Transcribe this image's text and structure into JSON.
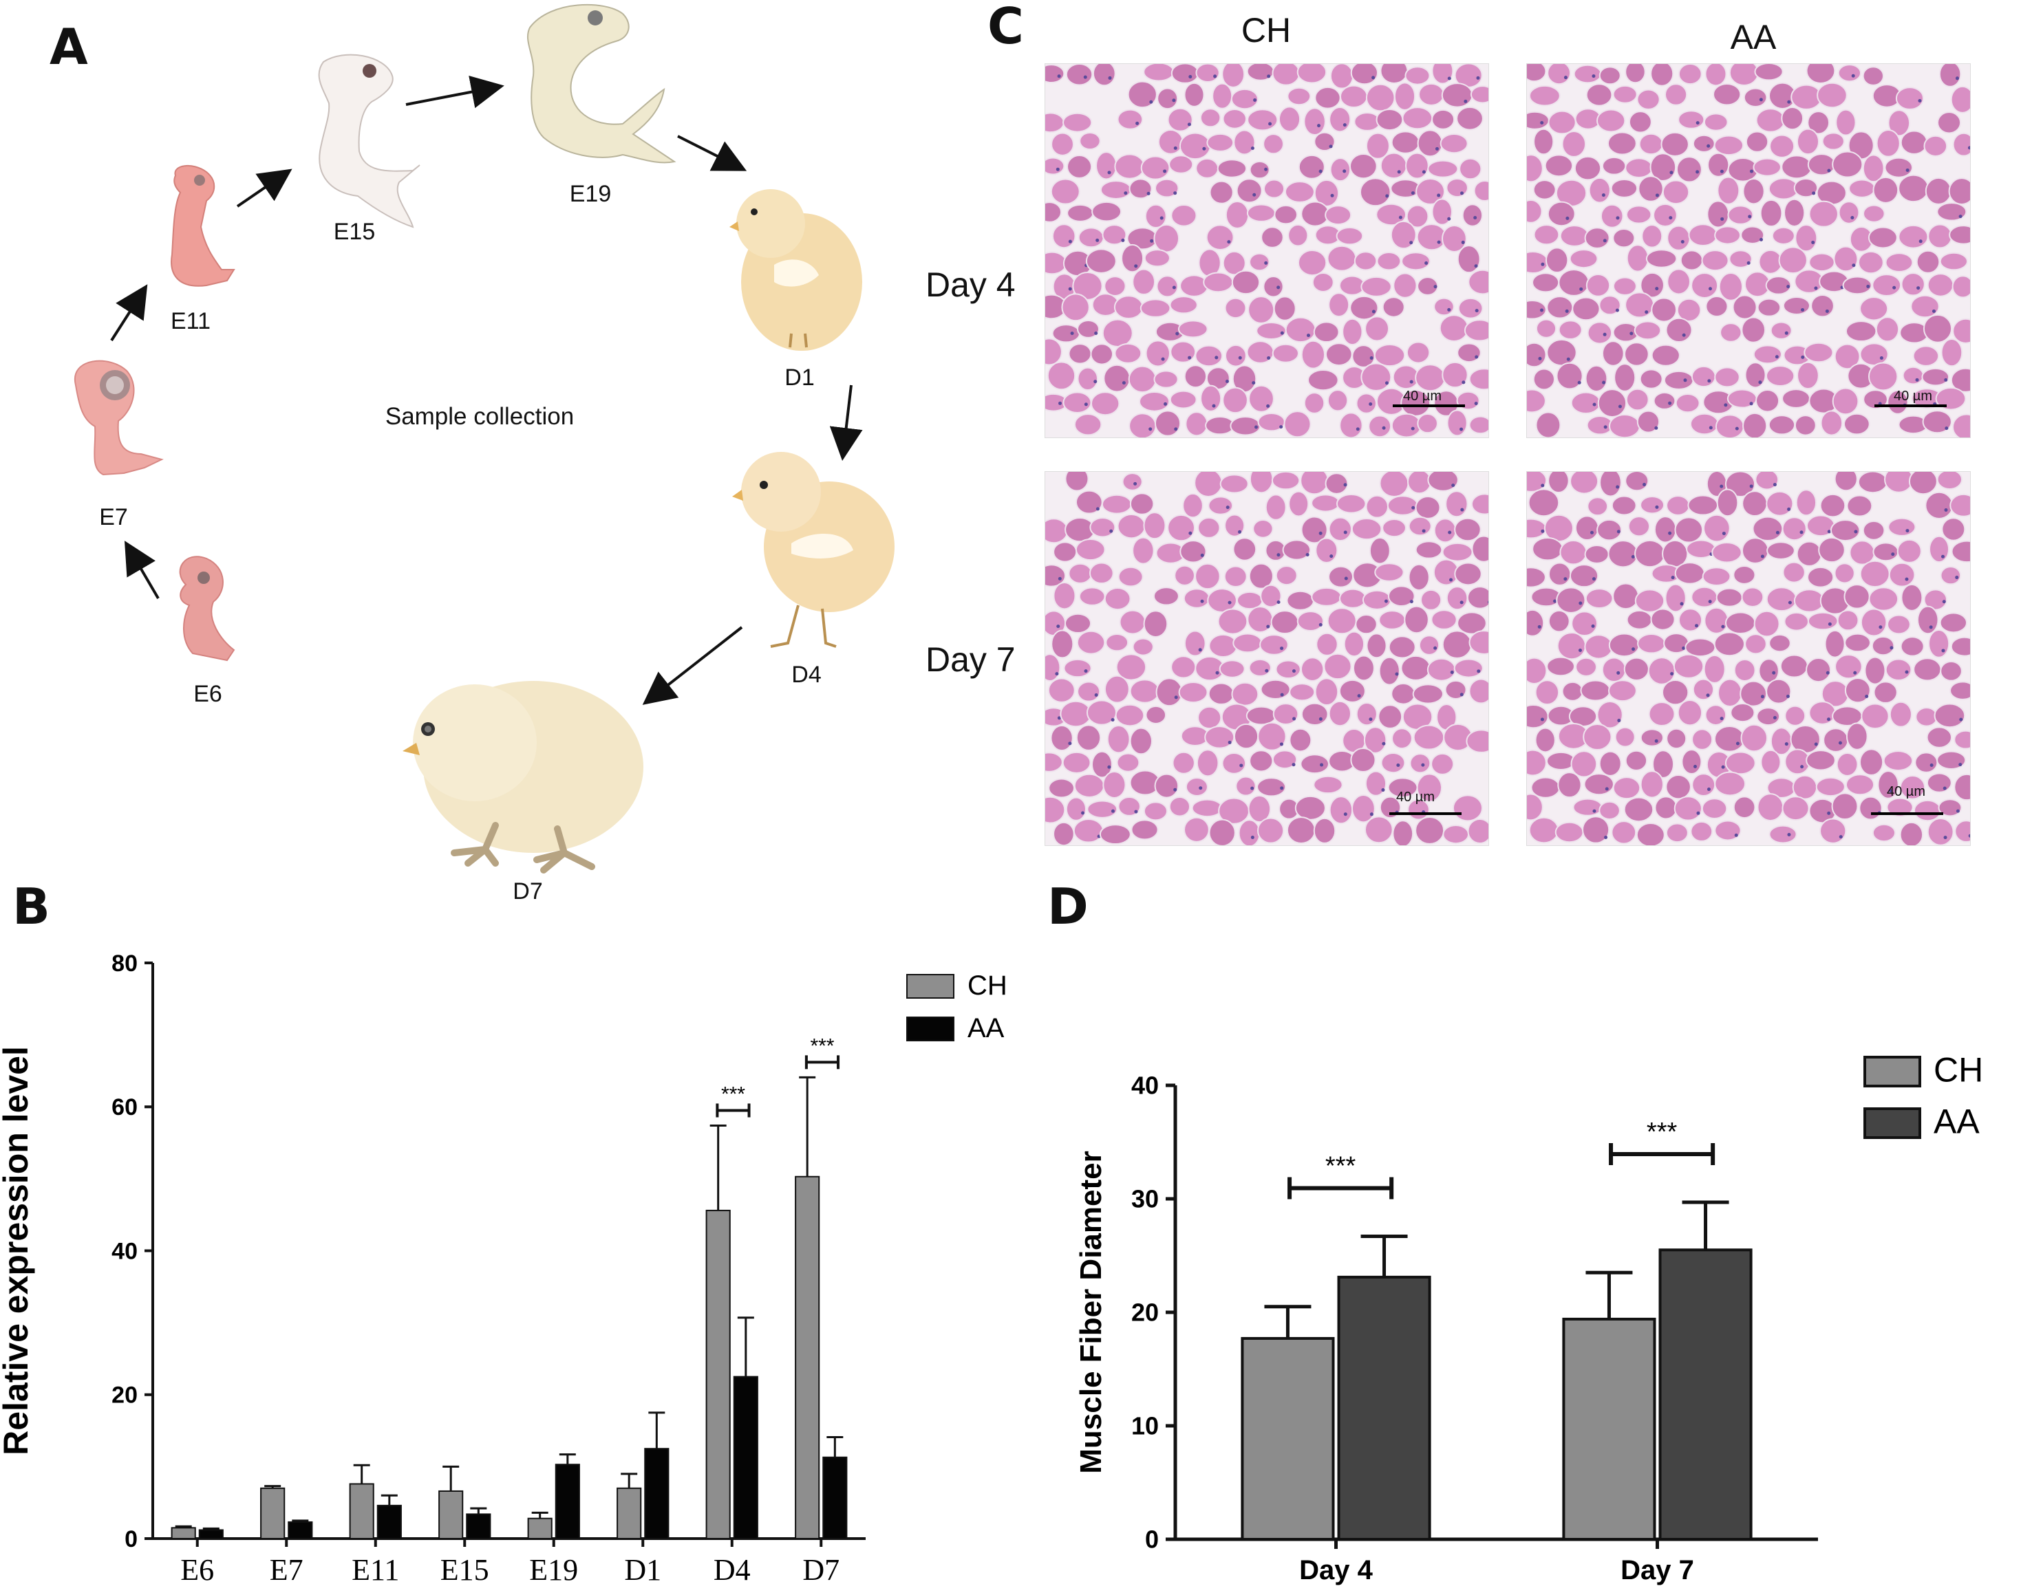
{
  "panels": {
    "a": "A",
    "b": "B",
    "c": "C",
    "d": "D"
  },
  "panel_a": {
    "center_label": "Sample collection",
    "stages": [
      "E6",
      "E7",
      "E11",
      "E15",
      "E19",
      "D1",
      "D4",
      "D7"
    ]
  },
  "panel_c": {
    "columns": [
      "CH",
      "AA"
    ],
    "rows": [
      "Day 4",
      "Day 7"
    ],
    "scale_bar": "40 µm",
    "colors": {
      "tissue": "#c97bb2",
      "fiber": "#d98fc4",
      "background": "#f4eef3",
      "nuclei": "#5a4a9a"
    }
  },
  "chart_data": [
    {
      "id": "B",
      "type": "bar",
      "ylabel": "Relative expression level",
      "xlabel": "",
      "ylim": [
        0,
        80
      ],
      "yticks": [
        "0",
        "20",
        "40",
        "60",
        "80"
      ],
      "categories": [
        "E6",
        "E7",
        "E11",
        "E15",
        "E19",
        "D1",
        "D4",
        "D7"
      ],
      "series": [
        {
          "name": "CH",
          "color": "#8e8e8e",
          "values": [
            1.5,
            7.0,
            7.6,
            6.6,
            2.8,
            7.0,
            45.6,
            50.3
          ],
          "errors": [
            0.2,
            0.3,
            2.6,
            3.4,
            0.8,
            2.0,
            11.8,
            13.8
          ]
        },
        {
          "name": "AA",
          "color": "#050505",
          "values": [
            1.2,
            2.3,
            4.6,
            3.4,
            10.3,
            12.5,
            22.5,
            11.3
          ],
          "errors": [
            0.2,
            0.2,
            1.4,
            0.8,
            1.4,
            5.0,
            8.2,
            2.8
          ]
        }
      ],
      "significance": [
        {
          "category": "D4",
          "label": "***"
        },
        {
          "category": "D7",
          "label": "***"
        }
      ],
      "legend": "top-right"
    },
    {
      "id": "D",
      "type": "bar",
      "ylabel": "Muscle Fiber Diameter",
      "xlabel": "",
      "ylim": [
        0,
        40
      ],
      "yticks": [
        "0",
        "10",
        "20",
        "30",
        "40"
      ],
      "categories": [
        "Day 4",
        "Day 7"
      ],
      "series": [
        {
          "name": "CH",
          "color": "#8c8c8c",
          "values": [
            17.7,
            19.4
          ],
          "errors": [
            2.8,
            4.1
          ]
        },
        {
          "name": "AA",
          "color": "#444444",
          "values": [
            23.1,
            25.5
          ],
          "errors": [
            3.6,
            4.2
          ]
        }
      ],
      "significance": [
        {
          "category": "Day 4",
          "label": "***"
        },
        {
          "category": "Day 7",
          "label": "***"
        }
      ],
      "legend": "top-right"
    }
  ]
}
